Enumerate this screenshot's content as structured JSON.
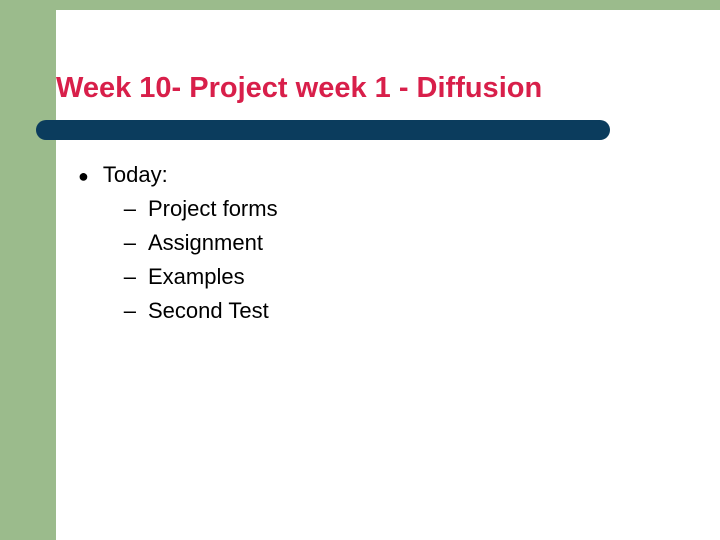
{
  "slide": {
    "title": "Week 10- Project week 1 - Diffusion",
    "title_color": "#d81f4a",
    "title_fontsize": 29,
    "accent_bar_color": "#0b3c5d",
    "green_color": "#9bbb8c",
    "background_color": "#ffffff",
    "body_fontsize": 22,
    "body_color": "#000000",
    "bullet": {
      "label": "Today:",
      "subitems": [
        "Project forms",
        "Assignment",
        "Examples",
        "Second Test"
      ]
    }
  }
}
